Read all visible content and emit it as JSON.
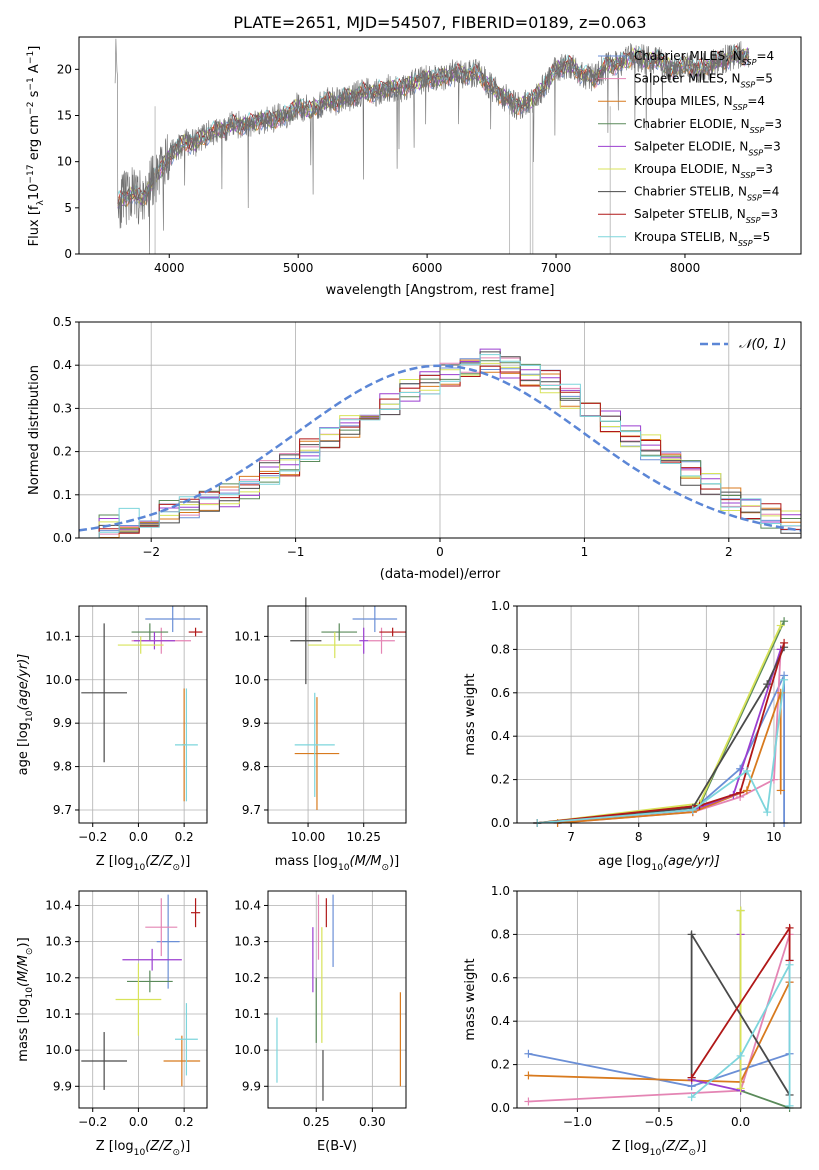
{
  "page_title": "PLATE=2651, MJD=54507, FIBERID=0189, z=0.063",
  "palette": [
    "#6b8fd6",
    "#e485b4",
    "#d87a1e",
    "#5a8a5a",
    "#9b3fd0",
    "#d8e35a",
    "#4a4a4a",
    "#b01818",
    "#7dd5dc"
  ],
  "panels": {
    "spectrum": {
      "xlabel": "wavelength [Angstrom, rest frame]",
      "ylabel_parts": [
        "Flux [f",
        "λ",
        "10",
        "−17",
        " erg cm",
        "−2",
        " s",
        "−1",
        " A",
        "−1",
        "]"
      ],
      "xticks": [
        "4000",
        "5000",
        "6000",
        "7000",
        "8000"
      ],
      "yticks": [
        "0",
        "5",
        "10",
        "15",
        "20"
      ]
    },
    "residuals": {
      "xlabel": "(data-model)/error",
      "ylabel": "Normed distribution",
      "xticks": [
        "−2",
        "−1",
        "0",
        "1",
        "2"
      ],
      "yticks": [
        "0.0",
        "0.1",
        "0.2",
        "0.3",
        "0.4",
        "0.5"
      ],
      "gauss_label": "𝒩(0, 1)"
    },
    "z_age": {
      "xlabel_parts": [
        "Z [log",
        "10",
        "(Z/Z",
        "⊙",
        ")]"
      ],
      "ylabel_parts": [
        "age  [log",
        "10",
        "(age/yr)]"
      ],
      "xticks": [
        "−0.2",
        "0.0",
        "0.2"
      ],
      "yticks": [
        "9.7",
        "9.8",
        "9.9",
        "10.0",
        "10.1"
      ]
    },
    "mass_age": {
      "xlabel_parts": [
        "mass [log",
        "10",
        "(M/M",
        "⊙",
        ")]"
      ],
      "xticks": [
        "10.00",
        "10.25"
      ],
      "yticks": [
        "9.7",
        "9.8",
        "9.9",
        "10.0",
        "10.1"
      ]
    },
    "age_weight": {
      "xlabel_parts": [
        "age  [log",
        "10",
        "(age/yr)]"
      ],
      "ylabel": "mass weight",
      "xticks": [
        "7",
        "8",
        "9",
        "10"
      ],
      "yticks": [
        "0.0",
        "0.2",
        "0.4",
        "0.6",
        "0.8",
        "1.0"
      ]
    },
    "z_mass": {
      "xlabel_parts": [
        "Z [log",
        "10",
        "(Z/Z",
        "⊙",
        ")]"
      ],
      "ylabel_parts": [
        "mass [log",
        "10",
        "(M/M",
        "⊙",
        ")]"
      ],
      "xticks": [
        "−0.2",
        "0.0",
        "0.2"
      ],
      "yticks": [
        "9.9",
        "10.0",
        "10.1",
        "10.2",
        "10.3",
        "10.4"
      ]
    },
    "ebv_mass": {
      "xlabel": "E(B-V)",
      "xticks": [
        "0.25",
        "0.30"
      ],
      "yticks": [
        "9.9",
        "10.0",
        "10.1",
        "10.2",
        "10.3",
        "10.4"
      ]
    },
    "z_weight": {
      "xlabel_parts": [
        "Z [log",
        "10",
        "(Z/Z",
        "⊙",
        ")]"
      ],
      "ylabel": "mass weight",
      "xticks": [
        "−1.0",
        "−0.5",
        "0.0"
      ],
      "yticks": [
        "0.0",
        "0.2",
        "0.4",
        "0.6",
        "0.8",
        "1.0"
      ]
    }
  },
  "chart_data": [
    {
      "type": "line",
      "title": "PLATE=2651, MJD=54507, FIBERID=0189, z=0.063",
      "xlabel": "wavelength [Angstrom, rest frame]",
      "ylabel": "Flux [fλ10^-17 erg cm^-2 s^-1 A^-1]",
      "xlim": [
        3300,
        8900
      ],
      "ylim": [
        0,
        23.5
      ],
      "grid": false,
      "legend": "top-right",
      "series": [
        {
          "name": "Chabrier MILES, N_SSP=4"
        },
        {
          "name": "Salpeter MILES, N_SSP=5"
        },
        {
          "name": "Kroupa MILES, N_SSP=4"
        },
        {
          "name": "Chabrier ELODIE, N_SSP=3"
        },
        {
          "name": "Salpeter ELODIE, N_SSP=3"
        },
        {
          "name": "Kroupa ELODIE, N_SSP=3"
        },
        {
          "name": "Chabrier STELIB, N_SSP=4"
        },
        {
          "name": "Salpeter STELIB, N_SSP=3"
        },
        {
          "name": "Kroupa STELIB, N_SSP=5"
        }
      ],
      "continuum": {
        "x": [
          3600,
          3700,
          3800,
          3900,
          4000,
          4100,
          4200,
          4300,
          4400,
          4500,
          4600,
          4700,
          4800,
          4900,
          5000,
          5100,
          5200,
          5300,
          5400,
          5500,
          5600,
          5700,
          5800,
          5900,
          6000,
          6100,
          6200,
          6300,
          6400,
          6500,
          6600,
          6700,
          6800,
          6900,
          7000,
          7100,
          7200,
          7300,
          7400,
          7500,
          7600,
          7700,
          7800,
          7900,
          8000,
          8100,
          8200,
          8300,
          8400,
          8500
        ],
        "y": [
          5.5,
          6.5,
          6.0,
          8.5,
          10.5,
          12.0,
          12.0,
          13.0,
          13.5,
          14.0,
          14.0,
          14.5,
          14.5,
          15.0,
          16.0,
          15.5,
          16.5,
          16.5,
          17.0,
          17.5,
          17.5,
          18.0,
          18.0,
          18.5,
          19.0,
          19.0,
          19.5,
          19.5,
          19.5,
          18.0,
          17.0,
          16.0,
          16.5,
          18.0,
          20.0,
          20.5,
          19.5,
          19.0,
          20.5,
          20.5,
          21.5,
          21.0,
          21.0,
          20.0,
          20.5,
          20.0,
          20.5,
          21.0,
          21.5,
          21.5
        ]
      }
    },
    {
      "type": "line",
      "xlabel": "(data-model)/error",
      "ylabel": "Normed distribution",
      "xlim": [
        -2.5,
        2.5
      ],
      "ylim": [
        0,
        0.5
      ],
      "grid": true,
      "legend": "top-right",
      "series": [
        {
          "name": "𝒩(0, 1)",
          "kind": "gaussian",
          "mean": 0,
          "sigma": 1
        }
      ],
      "histogram_steps": {
        "x_min": -2.5,
        "x_max": 2.5,
        "bins": 36,
        "envelope": [
          0.02,
          0.03,
          0.04,
          0.05,
          0.06,
          0.07,
          0.08,
          0.1,
          0.12,
          0.15,
          0.17,
          0.2,
          0.23,
          0.26,
          0.29,
          0.31,
          0.34,
          0.36,
          0.38,
          0.4,
          0.41,
          0.4,
          0.38,
          0.36,
          0.33,
          0.3,
          0.27,
          0.24,
          0.21,
          0.18,
          0.15,
          0.12,
          0.09,
          0.07,
          0.05,
          0.04
        ]
      }
    },
    {
      "type": "scatter",
      "title": "",
      "xlabel": "Z [log10(Z/Z⊙)]",
      "ylabel": "age [log10(age/yr)]",
      "xlim": [
        -0.26,
        0.3
      ],
      "ylim": [
        9.67,
        10.17
      ],
      "grid": true,
      "points": [
        {
          "x": 0.15,
          "xerr": 0.12,
          "y": 10.14,
          "yerr": 0.03
        },
        {
          "x": 0.1,
          "xerr": 0.13,
          "y": 10.09,
          "yerr": 0.03
        },
        {
          "x": 0.2,
          "xerr": 0.01,
          "y": 9.85,
          "yerr": 0.13
        },
        {
          "x": 0.05,
          "xerr": 0.08,
          "y": 10.11,
          "yerr": 0.02
        },
        {
          "x": 0.07,
          "xerr": 0.09,
          "y": 10.09,
          "yerr": 0.02
        },
        {
          "x": 0.01,
          "xerr": 0.1,
          "y": 10.08,
          "yerr": 0.02
        },
        {
          "x": -0.15,
          "xerr": 0.1,
          "y": 9.97,
          "yerr": 0.16
        },
        {
          "x": 0.25,
          "xerr": 0.03,
          "y": 10.11,
          "yerr": 0.01
        },
        {
          "x": 0.21,
          "xerr": 0.05,
          "y": 9.85,
          "yerr": 0.13
        }
      ]
    },
    {
      "type": "scatter",
      "xlabel": "mass [log10(M/M⊙)]",
      "xlim": [
        9.82,
        10.44
      ],
      "ylim": [
        9.67,
        10.17
      ],
      "grid": true,
      "points": [
        {
          "x": 10.3,
          "xerr": 0.1,
          "y": 10.14,
          "yerr": 0.03
        },
        {
          "x": 10.33,
          "xerr": 0.06,
          "y": 10.09,
          "yerr": 0.03
        },
        {
          "x": 10.04,
          "xerr": 0.1,
          "y": 9.83,
          "yerr": 0.13
        },
        {
          "x": 10.14,
          "xerr": 0.08,
          "y": 10.11,
          "yerr": 0.02
        },
        {
          "x": 10.25,
          "xerr": 0.02,
          "y": 10.09,
          "yerr": 0.03
        },
        {
          "x": 10.12,
          "xerr": 0.12,
          "y": 10.08,
          "yerr": 0.03
        },
        {
          "x": 9.99,
          "xerr": 0.07,
          "y": 10.09,
          "yerr": 0.1
        },
        {
          "x": 10.38,
          "xerr": 0.06,
          "y": 10.11,
          "yerr": 0.01
        },
        {
          "x": 10.03,
          "xerr": 0.09,
          "y": 9.85,
          "yerr": 0.12
        }
      ]
    },
    {
      "type": "line",
      "xlabel": "age [log10(age/yr)]",
      "ylabel": "mass weight",
      "xlim": [
        6.2,
        10.4
      ],
      "ylim": [
        0,
        1.0
      ],
      "grid": true,
      "series": [
        {
          "x": [
            6.5,
            8.8,
            9.5,
            10.15,
            10.15
          ],
          "y": [
            0.0,
            0.06,
            0.25,
            0.68,
            0.0
          ]
        },
        {
          "x": [
            6.8,
            8.8,
            9.5,
            10.0,
            10.1
          ],
          "y": [
            0.0,
            0.05,
            0.12,
            0.2,
            0.8
          ]
        },
        {
          "x": [
            6.8,
            8.8,
            9.6,
            10.1,
            10.1
          ],
          "y": [
            0.0,
            0.05,
            0.15,
            0.6,
            0.15
          ]
        },
        {
          "x": [
            6.5,
            8.9,
            10.15
          ],
          "y": [
            0.0,
            0.08,
            0.93
          ]
        },
        {
          "x": [
            6.5,
            8.8,
            9.4,
            10.1
          ],
          "y": [
            0.0,
            0.06,
            0.13,
            0.8
          ]
        },
        {
          "x": [
            6.5,
            8.9,
            10.1
          ],
          "y": [
            0.0,
            0.09,
            0.91
          ]
        },
        {
          "x": [
            6.5,
            8.8,
            9.9,
            10.15
          ],
          "y": [
            0.0,
            0.07,
            0.64,
            0.81
          ]
        },
        {
          "x": [
            6.5,
            8.9,
            9.5,
            10.15
          ],
          "y": [
            0.0,
            0.08,
            0.14,
            0.83
          ]
        },
        {
          "x": [
            6.5,
            8.8,
            9.6,
            9.9,
            10.15
          ],
          "y": [
            0.0,
            0.06,
            0.24,
            0.05,
            0.66
          ]
        }
      ]
    },
    {
      "type": "scatter",
      "xlabel": "Z [log10(Z/Z⊙)]",
      "ylabel": "mass [log10(M/M⊙)]",
      "xlim": [
        -0.26,
        0.3
      ],
      "ylim": [
        9.84,
        10.44
      ],
      "grid": true,
      "points": [
        {
          "x": 0.13,
          "xerr": 0.05,
          "y": 10.3,
          "yerr": 0.13
        },
        {
          "x": 0.1,
          "xerr": 0.07,
          "y": 10.34,
          "yerr": 0.08
        },
        {
          "x": 0.19,
          "xerr": 0.08,
          "y": 9.97,
          "yerr": 0.07
        },
        {
          "x": 0.05,
          "xerr": 0.1,
          "y": 10.19,
          "yerr": 0.03
        },
        {
          "x": 0.06,
          "xerr": 0.13,
          "y": 10.25,
          "yerr": 0.03
        },
        {
          "x": 0.0,
          "xerr": 0.1,
          "y": 10.14,
          "yerr": 0.1
        },
        {
          "x": -0.15,
          "xerr": 0.1,
          "y": 9.97,
          "yerr": 0.08
        },
        {
          "x": 0.25,
          "xerr": 0.02,
          "y": 10.38,
          "yerr": 0.04
        },
        {
          "x": 0.21,
          "xerr": 0.05,
          "y": 10.03,
          "yerr": 0.1
        }
      ]
    },
    {
      "type": "scatter",
      "xlabel": "E(B-V)",
      "xlim": [
        0.207,
        0.33
      ],
      "ylim": [
        9.84,
        10.44
      ],
      "grid": true,
      "points": [
        {
          "x": 0.265,
          "xerr": 0.0,
          "y": 10.33,
          "yerr": 0.1
        },
        {
          "x": 0.252,
          "xerr": 0.0,
          "y": 10.34,
          "yerr": 0.09
        },
        {
          "x": 0.325,
          "xerr": 0.0,
          "y": 10.03,
          "yerr": 0.13
        },
        {
          "x": 0.25,
          "xerr": 0.0,
          "y": 10.11,
          "yerr": 0.09
        },
        {
          "x": 0.247,
          "xerr": 0.0,
          "y": 10.25,
          "yerr": 0.09
        },
        {
          "x": 0.255,
          "xerr": 0.0,
          "y": 10.18,
          "yerr": 0.16
        },
        {
          "x": 0.256,
          "xerr": 0.0,
          "y": 9.93,
          "yerr": 0.07
        },
        {
          "x": 0.259,
          "xerr": 0.0,
          "y": 10.38,
          "yerr": 0.04
        },
        {
          "x": 0.215,
          "xerr": 0.0,
          "y": 10.0,
          "yerr": 0.09
        }
      ]
    },
    {
      "type": "line",
      "xlabel": "Z [log10(Z/Z⊙)]",
      "ylabel": "mass weight",
      "xlim": [
        -1.37,
        0.37
      ],
      "ylim": [
        0,
        1.0
      ],
      "grid": true,
      "series": [
        {
          "x": [
            -1.3,
            -0.3,
            0.3,
            0.3
          ],
          "y": [
            0.25,
            0.1,
            0.25,
            0.68
          ]
        },
        {
          "x": [
            -1.3,
            0.0,
            0.3,
            0.3
          ],
          "y": [
            0.03,
            0.08,
            0.8,
            0.58
          ]
        },
        {
          "x": [
            -1.3,
            0.0,
            0.3
          ],
          "y": [
            0.15,
            0.12,
            0.58
          ]
        },
        {
          "x": [
            0.0,
            0.0,
            0.3
          ],
          "y": [
            0.91,
            0.08,
            0.0
          ]
        },
        {
          "x": [
            -0.3,
            0.0,
            0.0
          ],
          "y": [
            0.13,
            0.08,
            0.8
          ]
        },
        {
          "x": [
            0.0,
            0.0
          ],
          "y": [
            0.09,
            0.91
          ]
        },
        {
          "x": [
            -0.3,
            -0.3,
            0.3
          ],
          "y": [
            0.14,
            0.8,
            0.06
          ]
        },
        {
          "x": [
            -0.3,
            0.3,
            0.3
          ],
          "y": [
            0.14,
            0.83,
            0.68
          ]
        },
        {
          "x": [
            -0.3,
            0.0,
            0.3,
            0.3
          ],
          "y": [
            0.05,
            0.24,
            0.66,
            0.01
          ]
        }
      ]
    }
  ]
}
